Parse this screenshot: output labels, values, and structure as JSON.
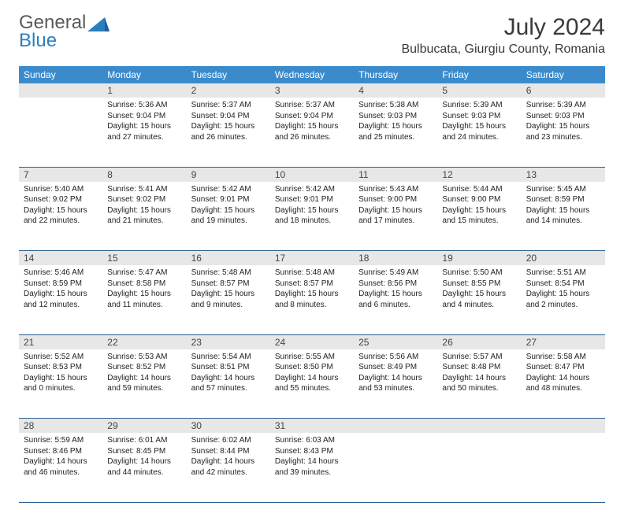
{
  "logo": {
    "general": "General",
    "blue": "Blue"
  },
  "title": {
    "month": "July 2024",
    "location": "Bulbucata, Giurgiu County, Romania"
  },
  "colors": {
    "header_bg": "#3b8bcc",
    "header_text": "#ffffff",
    "daynum_bg": "#e7e7e7",
    "border": "#2a5f8f",
    "logo_blue": "#2a7fbf",
    "logo_gray": "#5a5a5a"
  },
  "weekdays": [
    "Sunday",
    "Monday",
    "Tuesday",
    "Wednesday",
    "Thursday",
    "Friday",
    "Saturday"
  ],
  "weeks": [
    {
      "nums": [
        "",
        "1",
        "2",
        "3",
        "4",
        "5",
        "6"
      ],
      "cells": [
        {
          "sunrise": "",
          "sunset": "",
          "daylight1": "",
          "daylight2": ""
        },
        {
          "sunrise": "Sunrise: 5:36 AM",
          "sunset": "Sunset: 9:04 PM",
          "daylight1": "Daylight: 15 hours",
          "daylight2": "and 27 minutes."
        },
        {
          "sunrise": "Sunrise: 5:37 AM",
          "sunset": "Sunset: 9:04 PM",
          "daylight1": "Daylight: 15 hours",
          "daylight2": "and 26 minutes."
        },
        {
          "sunrise": "Sunrise: 5:37 AM",
          "sunset": "Sunset: 9:04 PM",
          "daylight1": "Daylight: 15 hours",
          "daylight2": "and 26 minutes."
        },
        {
          "sunrise": "Sunrise: 5:38 AM",
          "sunset": "Sunset: 9:03 PM",
          "daylight1": "Daylight: 15 hours",
          "daylight2": "and 25 minutes."
        },
        {
          "sunrise": "Sunrise: 5:39 AM",
          "sunset": "Sunset: 9:03 PM",
          "daylight1": "Daylight: 15 hours",
          "daylight2": "and 24 minutes."
        },
        {
          "sunrise": "Sunrise: 5:39 AM",
          "sunset": "Sunset: 9:03 PM",
          "daylight1": "Daylight: 15 hours",
          "daylight2": "and 23 minutes."
        }
      ]
    },
    {
      "nums": [
        "7",
        "8",
        "9",
        "10",
        "11",
        "12",
        "13"
      ],
      "cells": [
        {
          "sunrise": "Sunrise: 5:40 AM",
          "sunset": "Sunset: 9:02 PM",
          "daylight1": "Daylight: 15 hours",
          "daylight2": "and 22 minutes."
        },
        {
          "sunrise": "Sunrise: 5:41 AM",
          "sunset": "Sunset: 9:02 PM",
          "daylight1": "Daylight: 15 hours",
          "daylight2": "and 21 minutes."
        },
        {
          "sunrise": "Sunrise: 5:42 AM",
          "sunset": "Sunset: 9:01 PM",
          "daylight1": "Daylight: 15 hours",
          "daylight2": "and 19 minutes."
        },
        {
          "sunrise": "Sunrise: 5:42 AM",
          "sunset": "Sunset: 9:01 PM",
          "daylight1": "Daylight: 15 hours",
          "daylight2": "and 18 minutes."
        },
        {
          "sunrise": "Sunrise: 5:43 AM",
          "sunset": "Sunset: 9:00 PM",
          "daylight1": "Daylight: 15 hours",
          "daylight2": "and 17 minutes."
        },
        {
          "sunrise": "Sunrise: 5:44 AM",
          "sunset": "Sunset: 9:00 PM",
          "daylight1": "Daylight: 15 hours",
          "daylight2": "and 15 minutes."
        },
        {
          "sunrise": "Sunrise: 5:45 AM",
          "sunset": "Sunset: 8:59 PM",
          "daylight1": "Daylight: 15 hours",
          "daylight2": "and 14 minutes."
        }
      ]
    },
    {
      "nums": [
        "14",
        "15",
        "16",
        "17",
        "18",
        "19",
        "20"
      ],
      "cells": [
        {
          "sunrise": "Sunrise: 5:46 AM",
          "sunset": "Sunset: 8:59 PM",
          "daylight1": "Daylight: 15 hours",
          "daylight2": "and 12 minutes."
        },
        {
          "sunrise": "Sunrise: 5:47 AM",
          "sunset": "Sunset: 8:58 PM",
          "daylight1": "Daylight: 15 hours",
          "daylight2": "and 11 minutes."
        },
        {
          "sunrise": "Sunrise: 5:48 AM",
          "sunset": "Sunset: 8:57 PM",
          "daylight1": "Daylight: 15 hours",
          "daylight2": "and 9 minutes."
        },
        {
          "sunrise": "Sunrise: 5:48 AM",
          "sunset": "Sunset: 8:57 PM",
          "daylight1": "Daylight: 15 hours",
          "daylight2": "and 8 minutes."
        },
        {
          "sunrise": "Sunrise: 5:49 AM",
          "sunset": "Sunset: 8:56 PM",
          "daylight1": "Daylight: 15 hours",
          "daylight2": "and 6 minutes."
        },
        {
          "sunrise": "Sunrise: 5:50 AM",
          "sunset": "Sunset: 8:55 PM",
          "daylight1": "Daylight: 15 hours",
          "daylight2": "and 4 minutes."
        },
        {
          "sunrise": "Sunrise: 5:51 AM",
          "sunset": "Sunset: 8:54 PM",
          "daylight1": "Daylight: 15 hours",
          "daylight2": "and 2 minutes."
        }
      ]
    },
    {
      "nums": [
        "21",
        "22",
        "23",
        "24",
        "25",
        "26",
        "27"
      ],
      "cells": [
        {
          "sunrise": "Sunrise: 5:52 AM",
          "sunset": "Sunset: 8:53 PM",
          "daylight1": "Daylight: 15 hours",
          "daylight2": "and 0 minutes."
        },
        {
          "sunrise": "Sunrise: 5:53 AM",
          "sunset": "Sunset: 8:52 PM",
          "daylight1": "Daylight: 14 hours",
          "daylight2": "and 59 minutes."
        },
        {
          "sunrise": "Sunrise: 5:54 AM",
          "sunset": "Sunset: 8:51 PM",
          "daylight1": "Daylight: 14 hours",
          "daylight2": "and 57 minutes."
        },
        {
          "sunrise": "Sunrise: 5:55 AM",
          "sunset": "Sunset: 8:50 PM",
          "daylight1": "Daylight: 14 hours",
          "daylight2": "and 55 minutes."
        },
        {
          "sunrise": "Sunrise: 5:56 AM",
          "sunset": "Sunset: 8:49 PM",
          "daylight1": "Daylight: 14 hours",
          "daylight2": "and 53 minutes."
        },
        {
          "sunrise": "Sunrise: 5:57 AM",
          "sunset": "Sunset: 8:48 PM",
          "daylight1": "Daylight: 14 hours",
          "daylight2": "and 50 minutes."
        },
        {
          "sunrise": "Sunrise: 5:58 AM",
          "sunset": "Sunset: 8:47 PM",
          "daylight1": "Daylight: 14 hours",
          "daylight2": "and 48 minutes."
        }
      ]
    },
    {
      "nums": [
        "28",
        "29",
        "30",
        "31",
        "",
        "",
        ""
      ],
      "cells": [
        {
          "sunrise": "Sunrise: 5:59 AM",
          "sunset": "Sunset: 8:46 PM",
          "daylight1": "Daylight: 14 hours",
          "daylight2": "and 46 minutes."
        },
        {
          "sunrise": "Sunrise: 6:01 AM",
          "sunset": "Sunset: 8:45 PM",
          "daylight1": "Daylight: 14 hours",
          "daylight2": "and 44 minutes."
        },
        {
          "sunrise": "Sunrise: 6:02 AM",
          "sunset": "Sunset: 8:44 PM",
          "daylight1": "Daylight: 14 hours",
          "daylight2": "and 42 minutes."
        },
        {
          "sunrise": "Sunrise: 6:03 AM",
          "sunset": "Sunset: 8:43 PM",
          "daylight1": "Daylight: 14 hours",
          "daylight2": "and 39 minutes."
        },
        {
          "sunrise": "",
          "sunset": "",
          "daylight1": "",
          "daylight2": ""
        },
        {
          "sunrise": "",
          "sunset": "",
          "daylight1": "",
          "daylight2": ""
        },
        {
          "sunrise": "",
          "sunset": "",
          "daylight1": "",
          "daylight2": ""
        }
      ]
    }
  ]
}
